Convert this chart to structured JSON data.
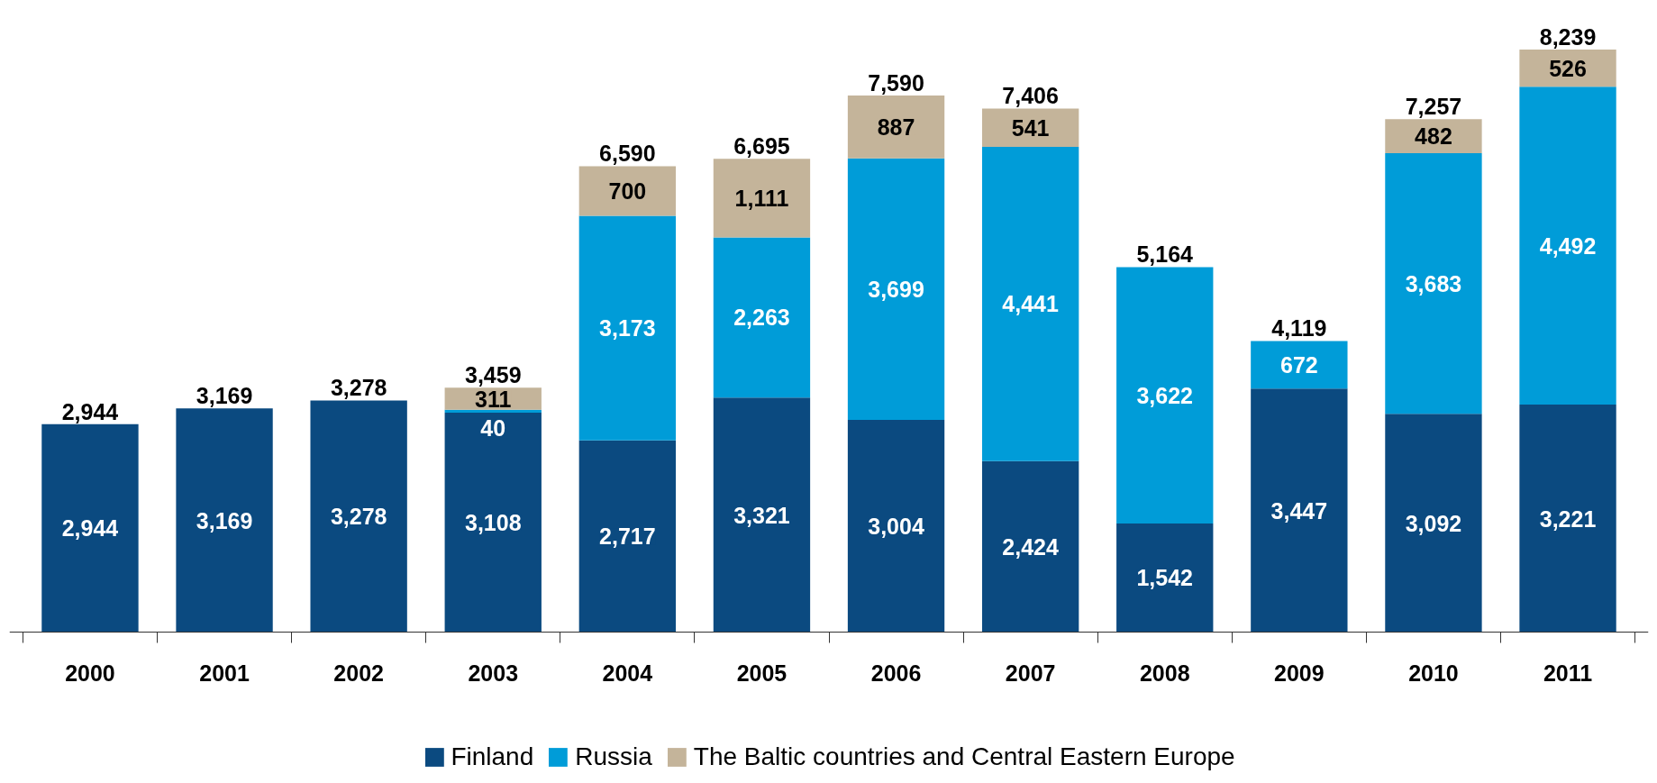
{
  "chart_data": {
    "type": "bar",
    "stacked": true,
    "data_labels": true,
    "legend": "bottom",
    "grid": false,
    "categories": [
      "2000",
      "2001",
      "2002",
      "2003",
      "2004",
      "2005",
      "2006",
      "2007",
      "2008",
      "2009",
      "2010",
      "2011"
    ],
    "series": [
      {
        "name": "Finland",
        "color": "#0b4a80",
        "values": [
          2944,
          3169,
          3278,
          3108,
          2717,
          3321,
          3004,
          2424,
          1542,
          3447,
          3092,
          3221
        ],
        "value_labels": [
          "2,944",
          "3,169",
          "3,278",
          "3,108",
          "2,717",
          "3,321",
          "3,004",
          "2,424",
          "1,542",
          "3,447",
          "3,092",
          "3,221"
        ]
      },
      {
        "name": "Russia",
        "color": "#009cd8",
        "values": [
          null,
          null,
          null,
          40,
          3173,
          2263,
          3699,
          4441,
          3622,
          672,
          3683,
          4492
        ],
        "value_labels": [
          null,
          null,
          null,
          "40",
          "3,173",
          "2,263",
          "3,699",
          "4,441",
          "3,622",
          "672",
          "3,683",
          "4,492"
        ]
      },
      {
        "name": "The Baltic countries and Central Eastern Europe",
        "color": "#c4b49a",
        "values": [
          null,
          null,
          null,
          311,
          700,
          1111,
          887,
          541,
          null,
          null,
          482,
          526
        ],
        "value_labels": [
          null,
          null,
          null,
          "311",
          "700",
          "1,111",
          "887",
          "541",
          null,
          null,
          "482",
          "526"
        ]
      }
    ],
    "totals": [
      "2,944",
      "3,169",
      "3,278",
      "3,459",
      "6,590",
      "6,695",
      "7,590",
      "7,406",
      "5,164",
      "4,119",
      "7,257",
      "8,239"
    ]
  }
}
